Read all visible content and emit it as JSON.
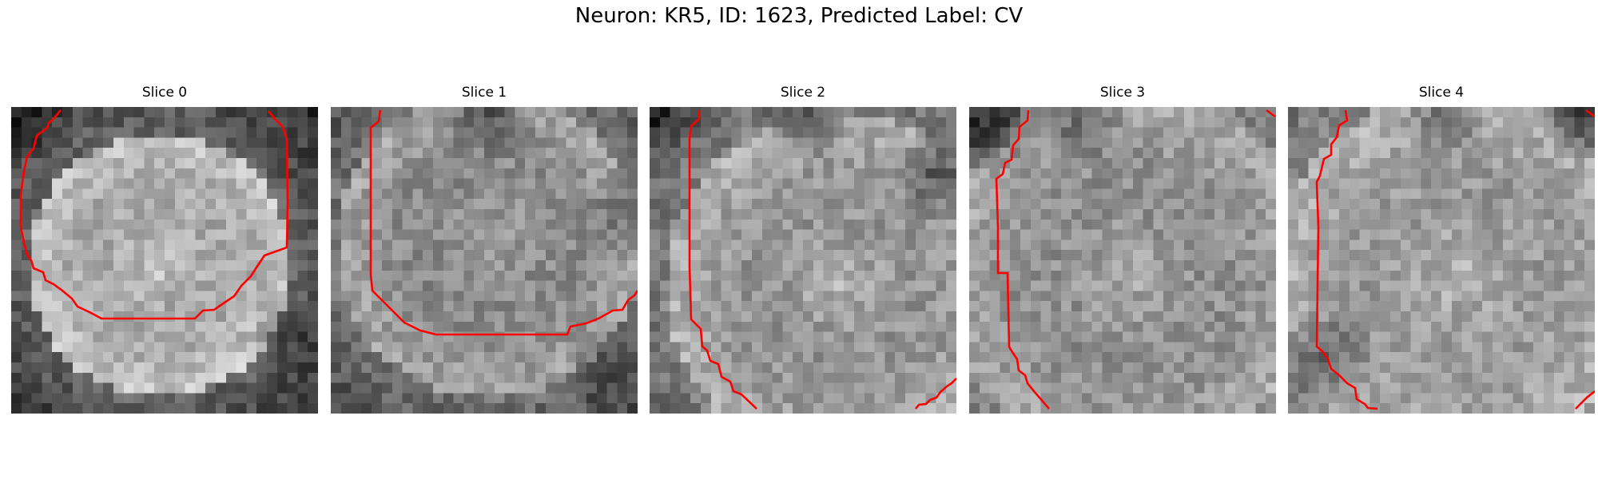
{
  "figure": {
    "title": "Neuron: KR5, ID: 1623, Predicted Label: CV",
    "contour_color": "#ff0000",
    "colormap": "gray"
  },
  "slices": [
    {
      "title": "Slice 0"
    },
    {
      "title": "Slice 1"
    },
    {
      "title": "Slice 2"
    },
    {
      "title": "Slice 3"
    },
    {
      "title": "Slice 4"
    }
  ]
}
